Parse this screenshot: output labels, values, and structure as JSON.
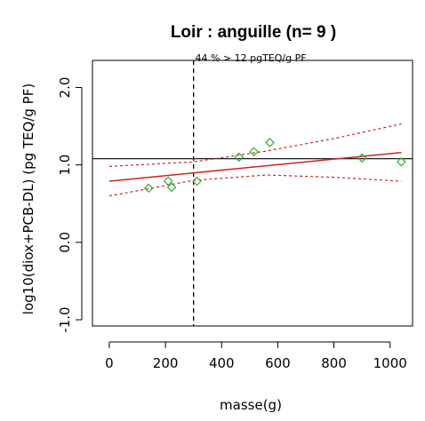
{
  "chart_data": {
    "type": "scatter",
    "title": "Loir  :  anguille (n= 9 )",
    "xlabel": "masse(g)",
    "ylabel": "log10(diox+PCB-DL) (pg TEQ/g PF)",
    "annotation": "44 % > 12 pgTEQ/g PF",
    "xlim": [
      -60,
      1080
    ],
    "ylim": [
      -1.08,
      2.35
    ],
    "x_ticks": [
      0,
      200,
      400,
      600,
      800,
      1000
    ],
    "y_ticks": [
      -1.0,
      0.0,
      1.0,
      2.0
    ],
    "y_tick_labels": [
      "-1.0",
      "0.0",
      "1.0",
      "2.0"
    ],
    "points": [
      {
        "x": 140,
        "y": 0.7
      },
      {
        "x": 210,
        "y": 0.79
      },
      {
        "x": 222,
        "y": 0.71
      },
      {
        "x": 312,
        "y": 0.79
      },
      {
        "x": 462,
        "y": 1.1
      },
      {
        "x": 515,
        "y": 1.17
      },
      {
        "x": 572,
        "y": 1.29
      },
      {
        "x": 900,
        "y": 1.09
      },
      {
        "x": 1040,
        "y": 1.04
      }
    ],
    "regression": {
      "x": [
        0,
        1040
      ],
      "y": [
        0.79,
        1.16
      ]
    },
    "ci_upper": [
      [
        0,
        0.98
      ],
      [
        300,
        1.04
      ],
      [
        560,
        1.18
      ],
      [
        800,
        1.34
      ],
      [
        1040,
        1.53
      ]
    ],
    "ci_lower": [
      [
        0,
        0.6
      ],
      [
        300,
        0.8
      ],
      [
        560,
        0.87
      ],
      [
        800,
        0.84
      ],
      [
        1040,
        0.79
      ]
    ],
    "threshold_y": 1.08,
    "vline_x": 300,
    "colors": {
      "points": "#33aa33",
      "regression": "#cc2222",
      "ci": "#cc2222",
      "threshold": "#000000",
      "vline": "#000000"
    }
  }
}
